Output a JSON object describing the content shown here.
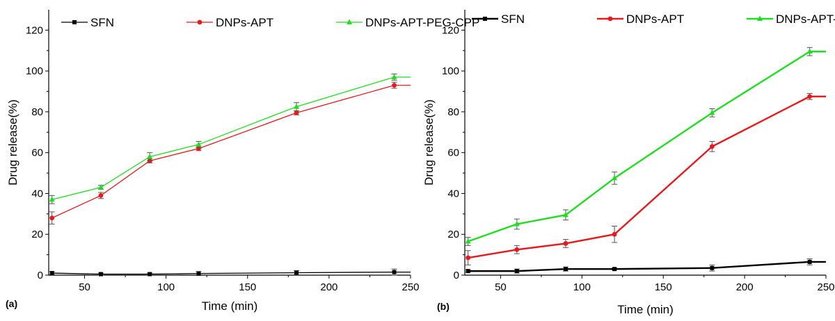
{
  "chart_data": [
    {
      "type": "line",
      "panel_label": "(a)",
      "xlabel": "Time (min)",
      "ylabel": "Drug release(%)",
      "xlim": [
        28,
        250
      ],
      "ylim": [
        0,
        130
      ],
      "xticks": [
        50,
        100,
        150,
        200,
        250
      ],
      "yticks": [
        0,
        20,
        40,
        60,
        80,
        100,
        120
      ],
      "x": [
        30,
        60,
        90,
        120,
        180,
        240,
        250
      ],
      "legend_position": "top",
      "series": [
        {
          "name": "SFN",
          "color": "#000000",
          "marker": "square",
          "values": [
            1,
            0.5,
            0.5,
            0.8,
            1.2,
            1.5,
            1.5
          ],
          "errors": [
            0.8,
            0.5,
            0.5,
            1.0,
            1.0,
            1.5,
            null
          ]
        },
        {
          "name": "DNPs-APT",
          "color": "#e8191c",
          "marker": "circle",
          "values": [
            28,
            39,
            56,
            62,
            79.5,
            93,
            93
          ],
          "errors": [
            3,
            1.5,
            1,
            1,
            1,
            1.5,
            null
          ]
        },
        {
          "name": "DNPs-APT-PEG-CPP",
          "color": "#1fdd1f",
          "marker": "triangle",
          "values": [
            37,
            43,
            58,
            64,
            82.5,
            97,
            97
          ],
          "errors": [
            2,
            1,
            2,
            1.5,
            2,
            1.5,
            null
          ]
        }
      ]
    },
    {
      "type": "line",
      "panel_label": "(b)",
      "xlabel": "Time (min)",
      "ylabel": "Drug release(%)",
      "xlim": [
        28,
        250
      ],
      "ylim": [
        0,
        130
      ],
      "xticks": [
        50,
        100,
        150,
        200,
        250
      ],
      "yticks": [
        0,
        20,
        40,
        60,
        80,
        100,
        120
      ],
      "x": [
        30,
        60,
        90,
        120,
        180,
        240,
        250
      ],
      "legend_position": "top",
      "series": [
        {
          "name": "SFN",
          "color": "#000000",
          "marker": "square",
          "values": [
            2,
            2,
            3,
            3,
            3.5,
            6.5,
            6.5
          ],
          "errors": [
            0.5,
            1,
            1,
            0.5,
            1.5,
            1.5,
            null
          ]
        },
        {
          "name": "DNPs-APT",
          "color": "#e8191c",
          "marker": "circle",
          "values": [
            8.5,
            12.5,
            15.5,
            20,
            63,
            87.5,
            87.5
          ],
          "errors": [
            3.5,
            2,
            2,
            4,
            2.5,
            1.5,
            null
          ]
        },
        {
          "name": "DNPs-APT-PEG-CPP",
          "color": "#1fdd1f",
          "marker": "triangle",
          "values": [
            16.5,
            25,
            29.5,
            47.5,
            79.5,
            109.5,
            109.5
          ],
          "errors": [
            2,
            2.5,
            2.5,
            3,
            2,
            2,
            null
          ]
        }
      ]
    }
  ]
}
